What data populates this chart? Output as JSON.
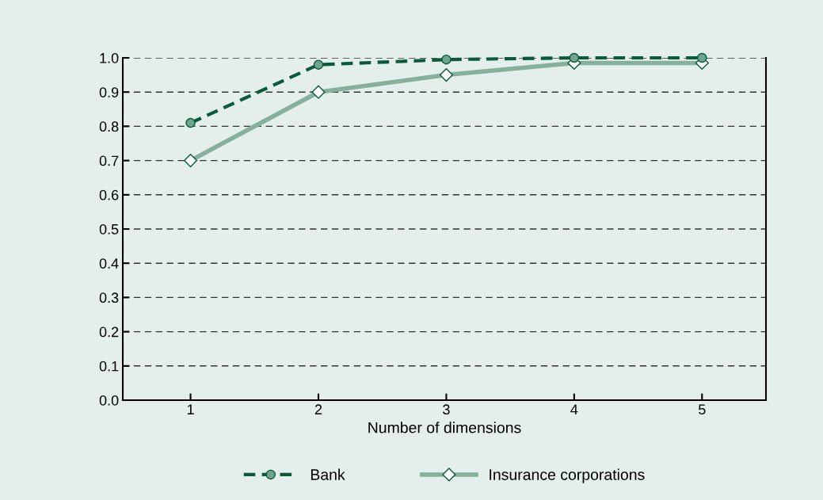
{
  "chart_data": {
    "type": "line",
    "xlabel": "Number of dimensions",
    "x": [
      1,
      2,
      3,
      4,
      5
    ],
    "xlim": [
      0.47,
      5.5
    ],
    "xticks": [
      1,
      2,
      3,
      4,
      5
    ],
    "ylim": [
      0,
      1
    ],
    "yticks": [
      {
        "value": 0,
        "label": "0.0"
      },
      {
        "value": 0.1,
        "label": "0.1"
      },
      {
        "value": 0.2,
        "label": "0.2"
      },
      {
        "value": 0.3,
        "label": "0.3"
      },
      {
        "value": 0.4,
        "label": "0.4"
      },
      {
        "value": 0.5,
        "label": "0.5"
      },
      {
        "value": 0.6,
        "label": "0.6"
      },
      {
        "value": 0.7,
        "label": "0.7"
      },
      {
        "value": 0.8,
        "label": "0.8"
      },
      {
        "value": 0.9,
        "label": "0.9"
      },
      {
        "value": 1,
        "label": "1.0"
      }
    ],
    "grid": "y",
    "legend": "bottom",
    "series": [
      {
        "name": "Bank",
        "color": "#0b5a3c",
        "marker": "circle",
        "line_style": "dashed",
        "values": [
          0.81,
          0.98,
          0.995,
          1.0,
          1.0
        ]
      },
      {
        "name": "Insurance corporations",
        "color": "#86b09e",
        "marker": "diamond",
        "line_style": "solid",
        "values": [
          0.7,
          0.9,
          0.95,
          0.985,
          0.985
        ]
      }
    ]
  }
}
